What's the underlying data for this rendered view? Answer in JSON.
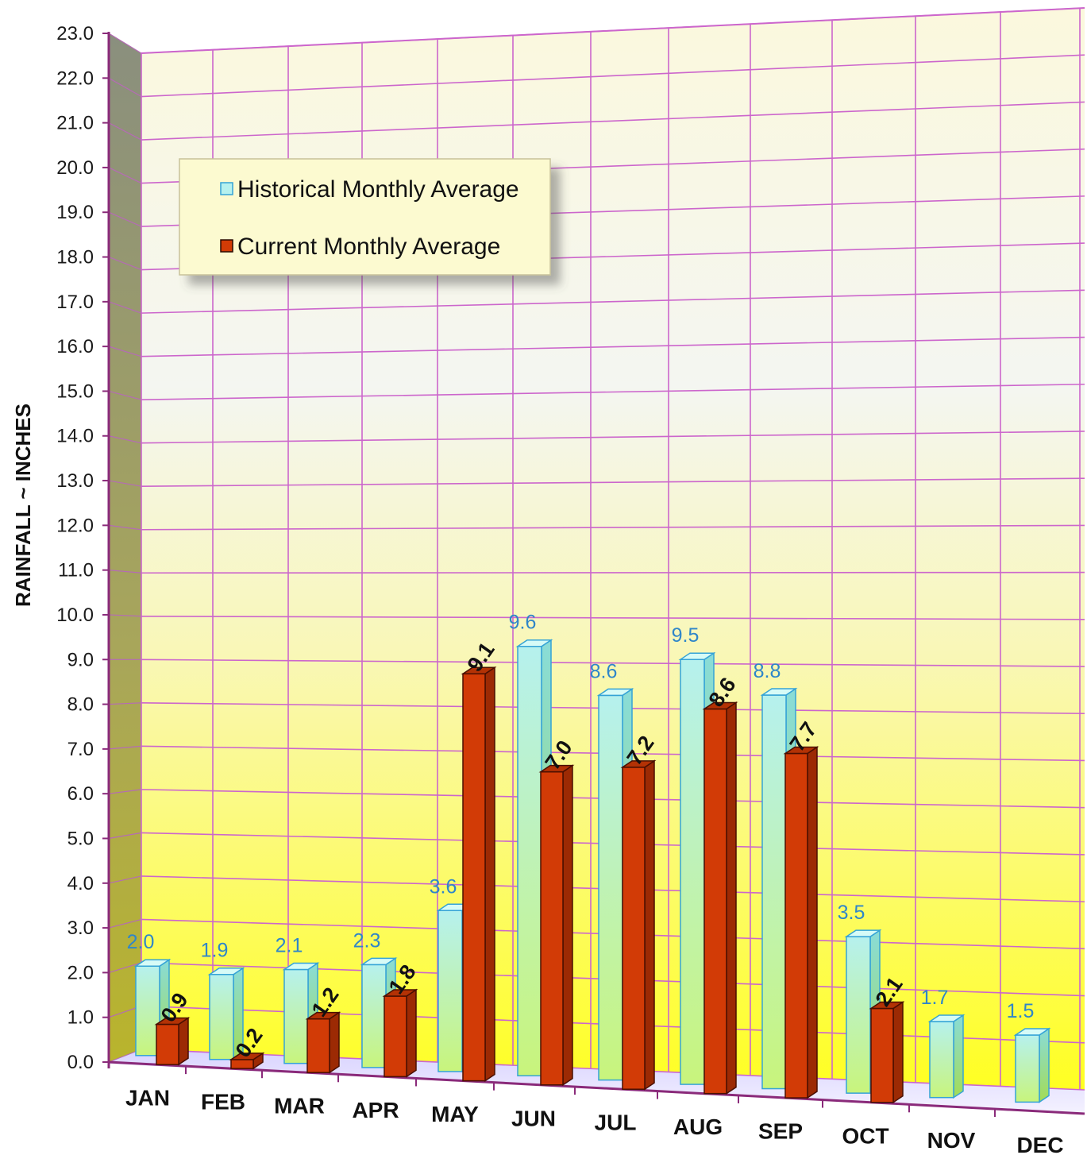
{
  "chart_data": {
    "type": "bar",
    "ylabel": "RAINFALL ~ INCHES",
    "xlabel": "",
    "ylim": [
      0,
      23
    ],
    "y_ticks": [
      "0.0",
      "1.0",
      "2.0",
      "3.0",
      "4.0",
      "5.0",
      "6.0",
      "7.0",
      "8.0",
      "9.0",
      "10.0",
      "11.0",
      "12.0",
      "13.0",
      "14.0",
      "15.0",
      "16.0",
      "17.0",
      "18.0",
      "19.0",
      "20.0",
      "21.0",
      "22.0",
      "23.0"
    ],
    "categories": [
      "JAN",
      "FEB",
      "MAR",
      "APR",
      "MAY",
      "JUN",
      "JUL",
      "AUG",
      "SEP",
      "OCT",
      "NOV",
      "DEC"
    ],
    "series": [
      {
        "name": "Historical Monthly Average",
        "color": "#9ee6d6",
        "values": [
          2.0,
          1.9,
          2.1,
          2.3,
          3.6,
          9.6,
          8.6,
          9.5,
          8.8,
          3.5,
          1.7,
          1.5
        ],
        "labels": [
          "2.0",
          "1.9",
          "2.1",
          "2.3",
          "3.6",
          "9.6",
          "8.6",
          "9.5",
          "8.8",
          "3.5",
          "1.7",
          "1.5"
        ]
      },
      {
        "name": "Current Monthly Average",
        "color": "#cc3300",
        "values": [
          0.9,
          0.2,
          1.2,
          1.8,
          9.1,
          7.0,
          7.2,
          8.6,
          7.7,
          2.1,
          null,
          null
        ],
        "labels": [
          "0.9",
          "0.2",
          "1.2",
          "1.8",
          "9.1",
          "7.0",
          "7.2",
          "8.6",
          "7.7",
          "2.1",
          null,
          null
        ]
      }
    ],
    "grid": true,
    "legend_position": "top-left",
    "style": "3d"
  }
}
